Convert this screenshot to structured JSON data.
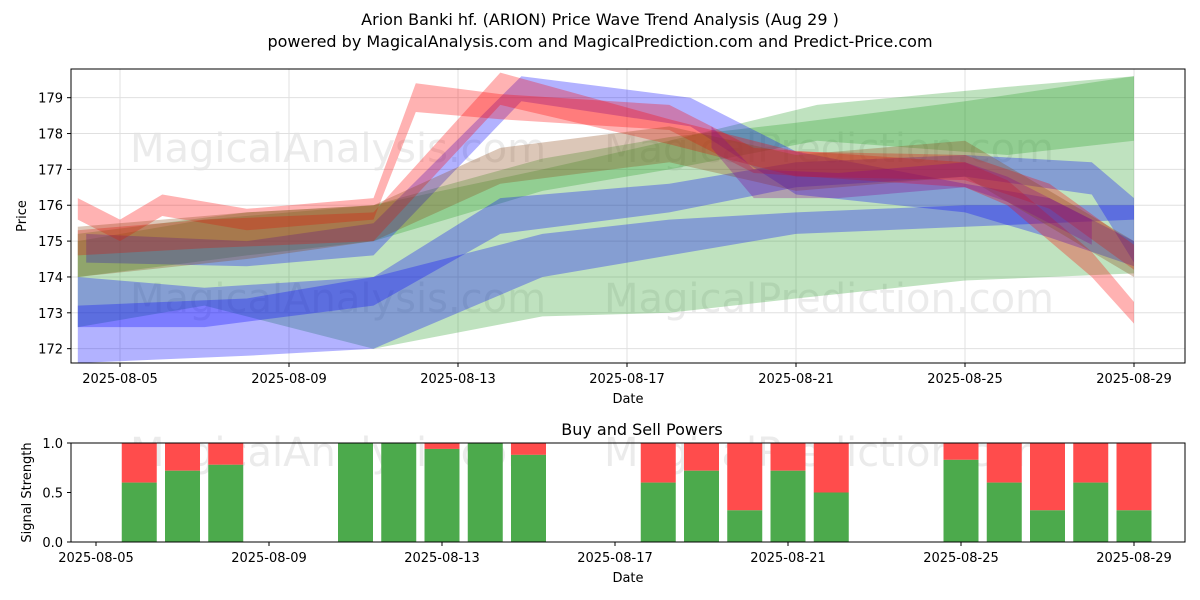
{
  "title": "Arion Banki hf. (ARION) Price Wave Trend Analysis (Aug 29 )",
  "subtitle": "powered by MagicalAnalysis.com and MagicalPrediction.com and Predict-Price.com",
  "watermarks": [
    "MagicalAnalysis.com",
    "MagicalPrediction.com"
  ],
  "chart_data": [
    {
      "type": "area",
      "title": "",
      "xlabel": "Date",
      "ylabel": "Price",
      "x_ticks": [
        "2025-08-05",
        "2025-08-09",
        "2025-08-13",
        "2025-08-17",
        "2025-08-21",
        "2025-08-25",
        "2025-08-29"
      ],
      "y_ticks": [
        172,
        173,
        174,
        175,
        176,
        177,
        178,
        179
      ],
      "ylim": [
        171.6,
        179.8
      ],
      "x_start": "2025-08-04",
      "bands": [
        {
          "color": "#2ca02c",
          "name": "green band wide",
          "upper": [
            [
              4.0,
              175.0
            ],
            [
              7.0,
              175.6
            ],
            [
              11.0,
              176.0
            ],
            [
              15.0,
              177.3
            ],
            [
              18.0,
              177.9
            ],
            [
              21.0,
              178.3
            ],
            [
              25.0,
              178.9
            ],
            [
              29.0,
              179.6
            ]
          ],
          "lower": [
            [
              4.0,
              172.6
            ],
            [
              7.0,
              173.2
            ],
            [
              11.0,
              172.0
            ],
            [
              15.0,
              172.9
            ],
            [
              18.0,
              173.0
            ],
            [
              21.0,
              173.4
            ],
            [
              25.0,
              173.9
            ],
            [
              29.0,
              174.1
            ]
          ]
        },
        {
          "color": "#2ca02c",
          "name": "green band upper",
          "upper": [
            [
              4.0,
              175.2
            ],
            [
              8.0,
              175.8
            ],
            [
              11.0,
              176.0
            ],
            [
              15.0,
              177.0
            ],
            [
              18.0,
              177.8
            ],
            [
              21.5,
              178.8
            ],
            [
              26.0,
              179.3
            ],
            [
              29.0,
              179.6
            ]
          ],
          "lower": [
            [
              4.0,
              174.0
            ],
            [
              8.0,
              174.6
            ],
            [
              11.0,
              175.0
            ],
            [
              15.0,
              176.4
            ],
            [
              18.0,
              177.0
            ],
            [
              21.5,
              177.8
            ],
            [
              26.0,
              177.4
            ],
            [
              29.0,
              177.8
            ]
          ]
        },
        {
          "color": "#0000ff",
          "name": "blue band upper",
          "upper": [
            [
              4.0,
              174.0
            ],
            [
              7.0,
              173.7
            ],
            [
              11.0,
              174.0
            ],
            [
              14.0,
              176.2
            ],
            [
              18.0,
              176.6
            ],
            [
              21.0,
              177.2
            ],
            [
              25.0,
              177.4
            ],
            [
              28.0,
              177.2
            ],
            [
              29.0,
              176.2
            ]
          ],
          "lower": [
            [
              4.0,
              172.6
            ],
            [
              7.0,
              172.6
            ],
            [
              11.0,
              173.2
            ],
            [
              14.0,
              175.2
            ],
            [
              18.0,
              175.8
            ],
            [
              21.0,
              176.5
            ],
            [
              25.0,
              176.8
            ],
            [
              28.0,
              176.3
            ],
            [
              29.0,
              174.4
            ]
          ]
        },
        {
          "color": "#0000ff",
          "name": "blue band lower",
          "upper": [
            [
              4.0,
              173.2
            ],
            [
              8.0,
              173.4
            ],
            [
              11.0,
              174.0
            ],
            [
              15.0,
              175.2
            ],
            [
              18.0,
              175.6
            ],
            [
              21.0,
              175.8
            ],
            [
              25.0,
              176.0
            ],
            [
              29.0,
              176.0
            ]
          ],
          "lower": [
            [
              4.0,
              171.6
            ],
            [
              8.0,
              171.8
            ],
            [
              11.0,
              172.0
            ],
            [
              15.0,
              174.0
            ],
            [
              18.0,
              174.6
            ],
            [
              21.0,
              175.2
            ],
            [
              25.0,
              175.4
            ],
            [
              29.0,
              175.6
            ]
          ]
        },
        {
          "color": "#0000ff",
          "name": "blue band top",
          "upper": [
            [
              4.2,
              175.2
            ],
            [
              8.0,
              175.0
            ],
            [
              11.0,
              175.5
            ],
            [
              14.5,
              179.6
            ],
            [
              18.5,
              179.0
            ],
            [
              21.0,
              177.5
            ],
            [
              25.0,
              176.6
            ],
            [
              27.0,
              176.2
            ],
            [
              29.0,
              175.0
            ]
          ],
          "lower": [
            [
              4.2,
              174.4
            ],
            [
              8.0,
              174.3
            ],
            [
              11.0,
              174.6
            ],
            [
              14.5,
              178.9
            ],
            [
              18.5,
              178.2
            ],
            [
              21.0,
              176.3
            ],
            [
              25.0,
              175.8
            ],
            [
              27.0,
              175.1
            ],
            [
              29.0,
              174.3
            ]
          ]
        },
        {
          "color": "#ff0000",
          "name": "red band a",
          "upper": [
            [
              4.0,
              176.2
            ],
            [
              5.0,
              175.6
            ],
            [
              6.0,
              176.3
            ],
            [
              8.0,
              175.9
            ],
            [
              11.0,
              176.2
            ],
            [
              12.0,
              179.4
            ],
            [
              14.0,
              179.1
            ],
            [
              18.0,
              178.8
            ],
            [
              20.0,
              177.6
            ],
            [
              25.0,
              177.2
            ],
            [
              26.0,
              176.7
            ],
            [
              28.0,
              174.7
            ],
            [
              29.0,
              173.3
            ]
          ],
          "lower": [
            [
              4.0,
              175.6
            ],
            [
              5.0,
              175.0
            ],
            [
              6.0,
              175.7
            ],
            [
              8.0,
              175.3
            ],
            [
              11.0,
              175.6
            ],
            [
              12.0,
              178.6
            ],
            [
              14.0,
              178.4
            ],
            [
              18.0,
              178.1
            ],
            [
              20.0,
              176.9
            ],
            [
              25.0,
              176.5
            ],
            [
              26.0,
              176.0
            ],
            [
              28.0,
              174.0
            ],
            [
              29.0,
              172.7
            ]
          ]
        },
        {
          "color": "#ff0000",
          "name": "red band b",
          "upper": [
            [
              4.0,
              175.3
            ],
            [
              7.0,
              175.6
            ],
            [
              11.0,
              175.8
            ],
            [
              14.0,
              179.7
            ],
            [
              18.0,
              178.4
            ],
            [
              21.0,
              177.5
            ],
            [
              25.0,
              177.4
            ],
            [
              27.0,
              176.6
            ],
            [
              29.0,
              174.9
            ]
          ],
          "lower": [
            [
              4.0,
              174.6
            ],
            [
              7.0,
              174.8
            ],
            [
              11.0,
              175.0
            ],
            [
              14.0,
              178.8
            ],
            [
              18.0,
              177.7
            ],
            [
              21.0,
              176.8
            ],
            [
              25.0,
              176.7
            ],
            [
              27.0,
              175.9
            ],
            [
              29.0,
              174.2
            ]
          ]
        },
        {
          "color": "#8b4513",
          "name": "brown band",
          "upper": [
            [
              4.0,
              175.4
            ],
            [
              8.0,
              175.8
            ],
            [
              11.0,
              176.0
            ],
            [
              14.0,
              177.6
            ],
            [
              18.0,
              178.2
            ],
            [
              21.0,
              177.4
            ],
            [
              25.0,
              177.8
            ],
            [
              27.0,
              176.4
            ],
            [
              29.0,
              175.0
            ]
          ],
          "lower": [
            [
              4.0,
              174.0
            ],
            [
              8.0,
              174.5
            ],
            [
              11.0,
              175.0
            ],
            [
              14.0,
              176.6
            ],
            [
              18.0,
              177.2
            ],
            [
              21.0,
              176.4
            ],
            [
              25.0,
              176.8
            ],
            [
              27.0,
              175.4
            ],
            [
              29.0,
              174.0
            ]
          ]
        },
        {
          "color": "#8b008b",
          "name": "magenta band",
          "upper": [
            [
              19.0,
              178.2
            ],
            [
              20.0,
              177.0
            ],
            [
              22.0,
              176.9
            ],
            [
              25.0,
              177.2
            ],
            [
              26.0,
              176.8
            ],
            [
              28.0,
              175.6
            ]
          ],
          "lower": [
            [
              19.0,
              177.6
            ],
            [
              20.0,
              176.2
            ],
            [
              22.0,
              176.2
            ],
            [
              25.0,
              176.5
            ],
            [
              26.0,
              176.1
            ],
            [
              28.0,
              174.9
            ]
          ]
        }
      ]
    },
    {
      "type": "bar",
      "title": "Buy and Sell Powers",
      "xlabel": "Date",
      "ylabel": "Signal Strength",
      "x_ticks": [
        "2025-08-05",
        "2025-08-09",
        "2025-08-13",
        "2025-08-17",
        "2025-08-21",
        "2025-08-25",
        "2025-08-29"
      ],
      "y_ticks": [
        "0.0",
        "0.5",
        "1.0"
      ],
      "ylim": [
        0,
        1
      ],
      "x_start": "2025-08-04",
      "buy_color": "#4caa4c",
      "sell_color": "#ff4c4c",
      "days": [
        6,
        7,
        8,
        11,
        12,
        13,
        14,
        15,
        18,
        19,
        20,
        21,
        22,
        25,
        26,
        27,
        28,
        29
      ],
      "buy": [
        0.6,
        0.72,
        0.78,
        1.0,
        1.0,
        0.94,
        1.0,
        0.88,
        0.6,
        0.72,
        0.32,
        0.72,
        0.5,
        0.83,
        0.6,
        0.32,
        0.6,
        0.32
      ]
    }
  ]
}
